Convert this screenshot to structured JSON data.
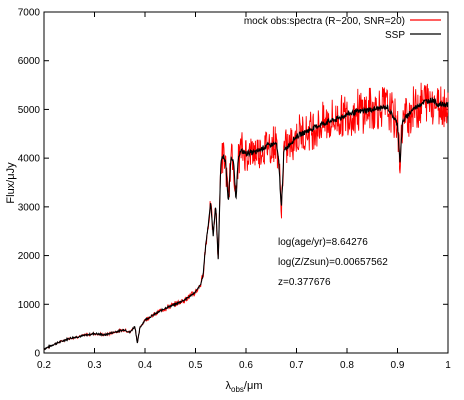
{
  "chart_data": {
    "type": "line",
    "xlabel_main": "λ",
    "xlabel_sub": "obs",
    "xlabel_unit": "/μm",
    "ylabel": "Flux/μJy",
    "xlim": [
      0.2,
      1.0
    ],
    "ylim": [
      0,
      7000
    ],
    "xticks": [
      "0.2",
      "0.3",
      "0.4",
      "0.5",
      "0.6",
      "0.7",
      "0.8",
      "0.9",
      "1"
    ],
    "yticks": [
      "0",
      "1000",
      "2000",
      "3000",
      "4000",
      "5000",
      "6000",
      "7000"
    ],
    "legend_position": "top-right",
    "grid": false,
    "series": [
      {
        "name": "mock obs:spectra (R~200, SNR=20)",
        "color": "#ff0000"
      },
      {
        "name": "SSP",
        "color": "#000000"
      }
    ],
    "annotations": [
      "log(age/yr)=8.64276",
      "log(Z/Zsun)=0.00657562",
      "z=0.377676"
    ],
    "ssp_points": [
      [
        0.2,
        80
      ],
      [
        0.22,
        180
      ],
      [
        0.25,
        300
      ],
      [
        0.28,
        360
      ],
      [
        0.3,
        400
      ],
      [
        0.32,
        370
      ],
      [
        0.34,
        430
      ],
      [
        0.36,
        480
      ],
      [
        0.37,
        420
      ],
      [
        0.38,
        550
      ],
      [
        0.385,
        200
      ],
      [
        0.39,
        520
      ],
      [
        0.4,
        680
      ],
      [
        0.42,
        800
      ],
      [
        0.44,
        920
      ],
      [
        0.46,
        1000
      ],
      [
        0.48,
        1100
      ],
      [
        0.5,
        1250
      ],
      [
        0.51,
        1400
      ],
      [
        0.515,
        1600
      ],
      [
        0.52,
        2200
      ],
      [
        0.525,
        2600
      ],
      [
        0.53,
        3100
      ],
      [
        0.535,
        2400
      ],
      [
        0.54,
        3050
      ],
      [
        0.545,
        1900
      ],
      [
        0.55,
        3900
      ],
      [
        0.555,
        4050
      ],
      [
        0.56,
        3900
      ],
      [
        0.565,
        3050
      ],
      [
        0.57,
        4000
      ],
      [
        0.575,
        4000
      ],
      [
        0.58,
        3100
      ],
      [
        0.585,
        4050
      ],
      [
        0.59,
        4150
      ],
      [
        0.6,
        4100
      ],
      [
        0.62,
        4120
      ],
      [
        0.64,
        4250
      ],
      [
        0.66,
        4300
      ],
      [
        0.665,
        3900
      ],
      [
        0.67,
        2950
      ],
      [
        0.675,
        4150
      ],
      [
        0.7,
        4450
      ],
      [
        0.72,
        4550
      ],
      [
        0.75,
        4700
      ],
      [
        0.78,
        4800
      ],
      [
        0.8,
        4900
      ],
      [
        0.82,
        4950
      ],
      [
        0.85,
        5000
      ],
      [
        0.88,
        5050
      ],
      [
        0.9,
        4700
      ],
      [
        0.905,
        3900
      ],
      [
        0.91,
        4750
      ],
      [
        0.93,
        5000
      ],
      [
        0.95,
        5150
      ],
      [
        0.97,
        5200
      ],
      [
        0.98,
        5100
      ],
      [
        1.0,
        5100
      ]
    ]
  }
}
